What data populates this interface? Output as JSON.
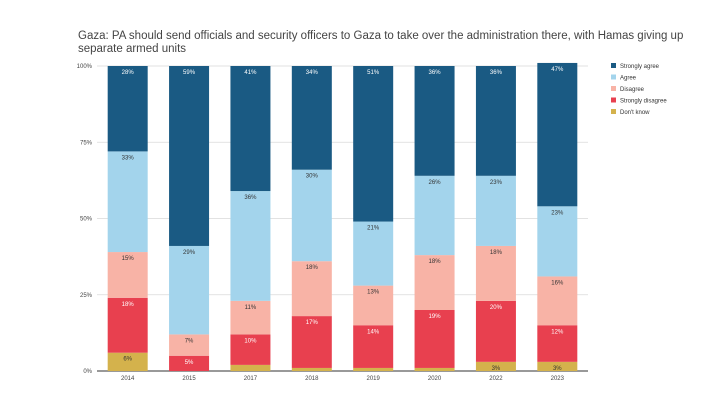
{
  "chart_data": {
    "type": "bar",
    "stacked": true,
    "title": "Gaza: PA should send officials and security officers to Gaza to take over the administration there, with Hamas giving up separate armed units",
    "categories": [
      "2014",
      "2015",
      "2017",
      "2018",
      "2019",
      "2020",
      "2022",
      "2023"
    ],
    "ylim": [
      0,
      100
    ],
    "yticks": [
      "0%",
      "25%",
      "50%",
      "75%",
      "100%"
    ],
    "grid": true,
    "legend_position": "right",
    "series": [
      {
        "name": "Don't know",
        "color": "#d4b24c",
        "values": [
          6,
          0,
          2,
          1,
          1,
          1,
          3,
          3
        ],
        "labels": [
          "6%",
          "",
          "",
          "",
          "",
          "",
          "3%",
          "3%"
        ]
      },
      {
        "name": "Strongly disagree",
        "color": "#e8404f",
        "values": [
          18,
          5,
          10,
          17,
          14,
          19,
          20,
          12
        ],
        "labels": [
          "18%",
          "5%",
          "10%",
          "17%",
          "14%",
          "19%",
          "20%",
          "12%"
        ]
      },
      {
        "name": "Disagree",
        "color": "#f8b3a6",
        "values": [
          15,
          7,
          11,
          18,
          13,
          18,
          18,
          16
        ],
        "labels": [
          "15%",
          "7%",
          "11%",
          "18%",
          "13%",
          "18%",
          "18%",
          "16%"
        ]
      },
      {
        "name": "Agree",
        "color": "#a3d4ec",
        "values": [
          33,
          29,
          36,
          30,
          21,
          26,
          23,
          23
        ],
        "labels": [
          "33%",
          "29%",
          "36%",
          "30%",
          "21%",
          "26%",
          "23%",
          "23%"
        ]
      },
      {
        "name": "Strongly agree",
        "color": "#1a5a83",
        "values": [
          28,
          59,
          41,
          34,
          51,
          36,
          36,
          47
        ],
        "labels": [
          "28%",
          "59%",
          "41%",
          "34%",
          "51%",
          "36%",
          "36%",
          "47%"
        ]
      }
    ],
    "legend_order": [
      "Strongly agree",
      "Agree",
      "Disagree",
      "Strongly disagree",
      "Don't know"
    ]
  }
}
